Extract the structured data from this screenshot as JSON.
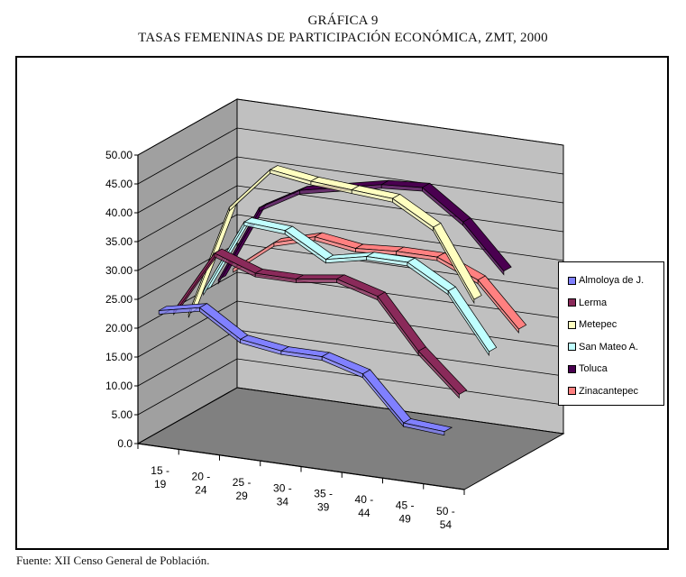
{
  "heading": {
    "number": "GRÁFICA 9",
    "title": "TASAS FEMENINAS DE PARTICIPACIÓN ECONÓMICA, ZMT, 2000"
  },
  "source": "Fuente: XII Censo General de Población.",
  "chart_data": {
    "type": "line",
    "style": "3d-ribbon",
    "title": "TASAS FEMENINAS DE PARTICIPACIÓN ECONÓMICA, ZMT, 2000",
    "categories": [
      "15 - 19",
      "20 - 24",
      "25 - 29",
      "30 - 34",
      "35 - 39",
      "40 - 44",
      "45 - 49",
      "50 - 54"
    ],
    "category_lines": [
      [
        "15 -",
        "19"
      ],
      [
        "20 -",
        "24"
      ],
      [
        "25 -",
        "29"
      ],
      [
        "30 -",
        "34"
      ],
      [
        "35 -",
        "39"
      ],
      [
        "40 -",
        "44"
      ],
      [
        "45 -",
        "49"
      ],
      [
        "50 -",
        "54"
      ]
    ],
    "yticks": [
      "0.0",
      "5.00",
      "10.00",
      "15.00",
      "20.00",
      "25.00",
      "30.00",
      "35.00",
      "40.00",
      "45.00",
      "50.00"
    ],
    "ylim": [
      0,
      50
    ],
    "grid": true,
    "legend_position": "right",
    "series": [
      {
        "name": "Almoloya de J.",
        "color": "#8080ff",
        "values": [
          23.5,
          25.0,
          20.5,
          19.5,
          19.5,
          17.5,
          10.0,
          9.5
        ]
      },
      {
        "name": "Lerma",
        "color": "#8a2a5a",
        "values": [
          22.0,
          33.0,
          30.5,
          30.5,
          31.5,
          29.5,
          21.0,
          14.5
        ]
      },
      {
        "name": "Metepec",
        "color": "#ffffc0",
        "values": [
          20.0,
          39.5,
          47.0,
          46.0,
          45.5,
          45.0,
          41.0,
          29.5
        ]
      },
      {
        "name": "San Mateo A.",
        "color": "#c0ffff",
        "values": [
          22.5,
          35.5,
          35.0,
          31.0,
          32.5,
          32.5,
          28.5,
          19.0
        ]
      },
      {
        "name": "Toluca",
        "color": "#4a0050",
        "values": [
          23.0,
          36.5,
          40.5,
          42.0,
          43.5,
          44.0,
          39.0,
          31.5
        ]
      },
      {
        "name": "Zinacantepec",
        "color": "#ff8080",
        "values": [
          23.5,
          29.0,
          31.0,
          30.0,
          30.5,
          30.5,
          27.5,
          20.0
        ]
      }
    ]
  }
}
